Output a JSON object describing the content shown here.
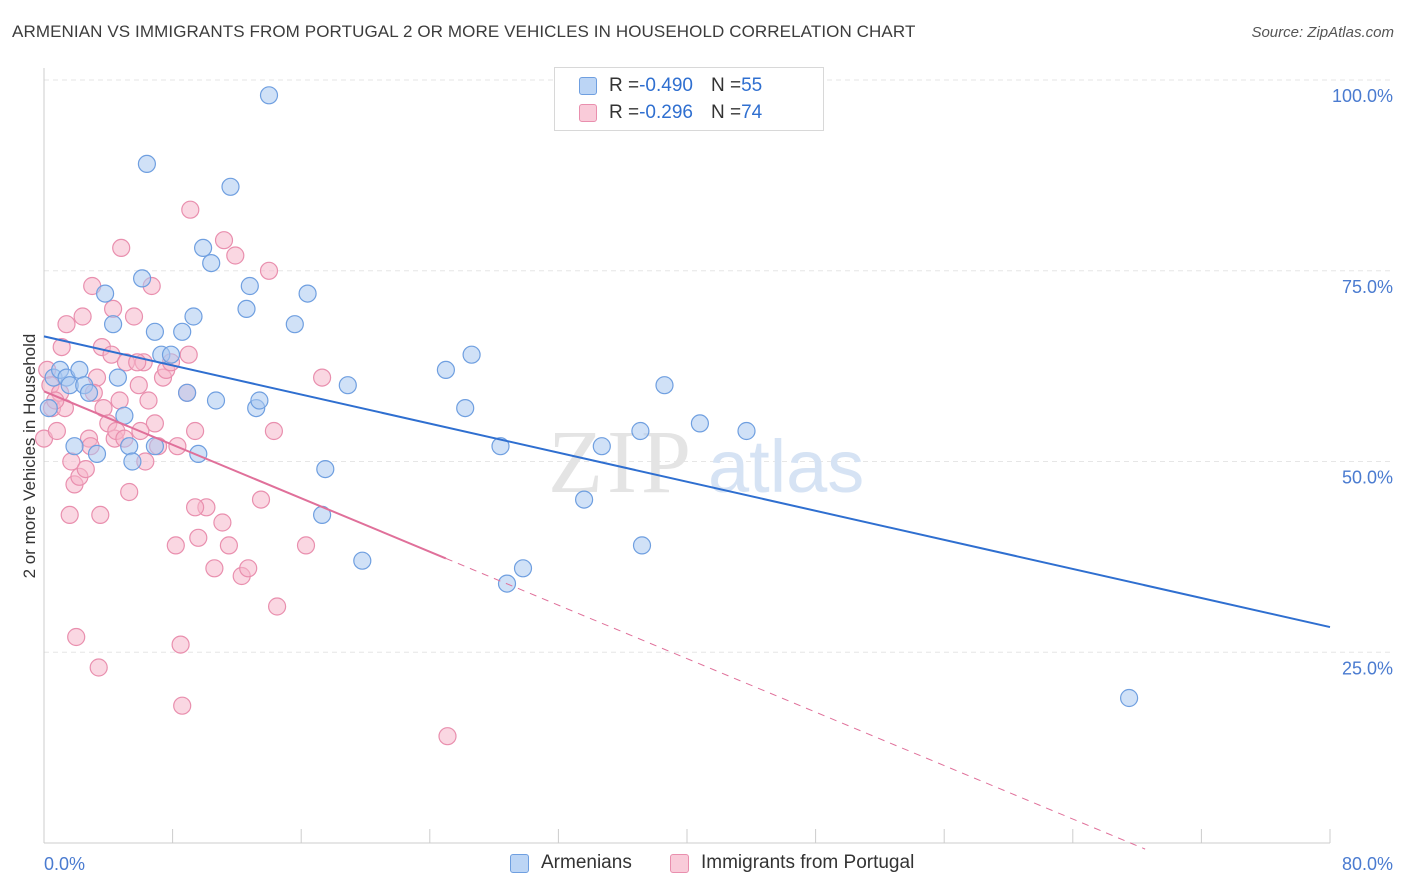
{
  "title": "ARMENIAN VS IMMIGRANTS FROM PORTUGAL 2 OR MORE VEHICLES IN HOUSEHOLD CORRELATION CHART",
  "source": "Source: ZipAtlas.com",
  "watermark": {
    "zip": "ZIP",
    "atlas": "atlas"
  },
  "colors": {
    "blue_fill": "#a9c8f0",
    "blue_stroke": "#6f9fe0",
    "blue_line": "#2f6fd0",
    "pink_fill": "#f6b7ca",
    "pink_stroke": "#e98fae",
    "pink_line": "#e0709a",
    "grid": "#e6e6e6",
    "tick_text": "#4a7bd0"
  },
  "legend": {
    "rows": [
      {
        "r_label": "R = ",
        "r_value": "-0.490",
        "n_label": "N = ",
        "n_value": "55"
      },
      {
        "r_label": "R = ",
        "r_value": "-0.296",
        "n_label": "N = ",
        "n_value": "74"
      }
    ]
  },
  "bottom_legend": {
    "series1": "Armenians",
    "series2": "Immigrants from Portugal"
  },
  "chart_data": {
    "type": "scatter",
    "title": "ARMENIAN VS IMMIGRANTS FROM PORTUGAL 2 OR MORE VEHICLES IN HOUSEHOLD CORRELATION CHART",
    "xlabel": "",
    "ylabel": "2 or more Vehicles in Household",
    "xlim": [
      0,
      80
    ],
    "ylim": [
      0,
      105
    ],
    "x_tick_labels": [
      "0.0%",
      "80.0%"
    ],
    "y_ticks": [
      25,
      50,
      75,
      100
    ],
    "y_tick_labels": [
      "25.0%",
      "50.0%",
      "75.0%",
      "100.0%"
    ],
    "grid": true,
    "legend_position": "top-center",
    "series": [
      {
        "name": "Armenians",
        "color": "#a9c8f0",
        "points": [
          [
            0.3,
            57
          ],
          [
            0.6,
            61
          ],
          [
            1.0,
            62
          ],
          [
            1.4,
            61
          ],
          [
            1.6,
            60
          ],
          [
            1.9,
            52
          ],
          [
            2.2,
            62
          ],
          [
            2.5,
            60
          ],
          [
            2.8,
            59
          ],
          [
            3.3,
            51
          ],
          [
            3.8,
            72
          ],
          [
            4.3,
            68
          ],
          [
            4.6,
            61
          ],
          [
            5.0,
            56
          ],
          [
            5.3,
            52
          ],
          [
            5.5,
            50
          ],
          [
            6.1,
            74
          ],
          [
            6.4,
            89
          ],
          [
            6.9,
            67
          ],
          [
            6.9,
            52
          ],
          [
            7.3,
            64
          ],
          [
            7.9,
            64
          ],
          [
            8.6,
            67
          ],
          [
            8.9,
            59
          ],
          [
            9.3,
            69
          ],
          [
            9.6,
            51
          ],
          [
            9.9,
            78
          ],
          [
            10.4,
            76
          ],
          [
            10.7,
            58
          ],
          [
            11.6,
            86
          ],
          [
            12.6,
            70
          ],
          [
            12.8,
            73
          ],
          [
            13.2,
            57
          ],
          [
            13.4,
            58
          ],
          [
            14.0,
            98
          ],
          [
            15.6,
            68
          ],
          [
            16.4,
            72
          ],
          [
            17.3,
            43
          ],
          [
            17.5,
            49
          ],
          [
            18.9,
            60
          ],
          [
            19.8,
            37
          ],
          [
            25.0,
            62
          ],
          [
            26.2,
            57
          ],
          [
            26.6,
            64
          ],
          [
            28.4,
            52
          ],
          [
            28.8,
            34
          ],
          [
            29.8,
            36
          ],
          [
            33.6,
            45
          ],
          [
            34.7,
            52
          ],
          [
            37.1,
            54
          ],
          [
            37.2,
            39
          ],
          [
            38.6,
            60
          ],
          [
            40.8,
            55
          ],
          [
            43.7,
            54
          ],
          [
            67.5,
            19
          ]
        ]
      },
      {
        "name": "Immigrants from Portugal",
        "color": "#f6b7ca",
        "points": [
          [
            0.0,
            53
          ],
          [
            0.2,
            62
          ],
          [
            0.4,
            60
          ],
          [
            0.5,
            57
          ],
          [
            0.8,
            54
          ],
          [
            1.0,
            59
          ],
          [
            1.3,
            57
          ],
          [
            1.4,
            68
          ],
          [
            1.6,
            43
          ],
          [
            1.7,
            50
          ],
          [
            1.9,
            47
          ],
          [
            2.0,
            27
          ],
          [
            2.2,
            48
          ],
          [
            2.4,
            69
          ],
          [
            2.6,
            49
          ],
          [
            2.8,
            53
          ],
          [
            3.0,
            73
          ],
          [
            3.3,
            61
          ],
          [
            3.4,
            23
          ],
          [
            3.5,
            43
          ],
          [
            3.6,
            65
          ],
          [
            3.7,
            57
          ],
          [
            4.0,
            55
          ],
          [
            4.2,
            64
          ],
          [
            4.3,
            70
          ],
          [
            4.4,
            53
          ],
          [
            4.5,
            54
          ],
          [
            4.7,
            58
          ],
          [
            4.8,
            78
          ],
          [
            5.0,
            53
          ],
          [
            5.1,
            63
          ],
          [
            5.3,
            46
          ],
          [
            5.6,
            69
          ],
          [
            5.9,
            60
          ],
          [
            6.2,
            63
          ],
          [
            6.3,
            50
          ],
          [
            6.5,
            58
          ],
          [
            6.7,
            73
          ],
          [
            6.9,
            55
          ],
          [
            7.1,
            52
          ],
          [
            7.4,
            61
          ],
          [
            7.6,
            62
          ],
          [
            7.9,
            63
          ],
          [
            8.2,
            39
          ],
          [
            8.3,
            52
          ],
          [
            8.5,
            26
          ],
          [
            8.6,
            18
          ],
          [
            8.9,
            59
          ],
          [
            9.0,
            64
          ],
          [
            9.1,
            83
          ],
          [
            9.4,
            54
          ],
          [
            9.6,
            40
          ],
          [
            10.1,
            44
          ],
          [
            10.6,
            36
          ],
          [
            11.1,
            42
          ],
          [
            11.2,
            79
          ],
          [
            11.5,
            39
          ],
          [
            11.9,
            77
          ],
          [
            12.3,
            35
          ],
          [
            12.7,
            36
          ],
          [
            13.5,
            45
          ],
          [
            14.0,
            75
          ],
          [
            14.3,
            54
          ],
          [
            14.5,
            31
          ],
          [
            16.3,
            39
          ],
          [
            17.3,
            61
          ],
          [
            25.1,
            14
          ],
          [
            2.9,
            52
          ],
          [
            5.8,
            63
          ],
          [
            9.4,
            44
          ],
          [
            1.1,
            65
          ],
          [
            3.1,
            59
          ],
          [
            6.0,
            54
          ],
          [
            0.7,
            58
          ]
        ]
      }
    ],
    "trendlines": [
      {
        "series": "Armenians",
        "x": [
          0,
          80
        ],
        "y": [
          66.4,
          28.3
        ],
        "style": "solid"
      },
      {
        "series": "Immigrants from Portugal",
        "x": [
          0,
          25
        ],
        "y": [
          59.2,
          37.3
        ],
        "style": "solid"
      },
      {
        "series": "Immigrants from Portugal",
        "x": [
          25,
          68.5
        ],
        "y": [
          37.3,
          -0.8
        ],
        "style": "dashed"
      }
    ]
  }
}
